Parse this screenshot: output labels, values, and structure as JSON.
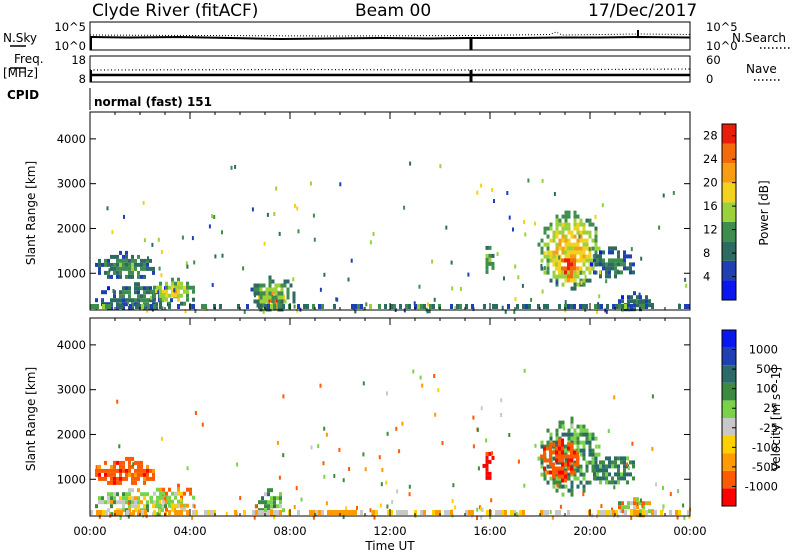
{
  "header": {
    "station": "Clyde River (fitACF)",
    "beam": "Beam 00",
    "date": "17/Dec/2017"
  },
  "noise_panel": {
    "left_label": "N.Sky",
    "left_ticks": [
      "10^5",
      "10^0"
    ],
    "right_label": "N.Search",
    "right_ticks": [
      "10^5",
      "10^0"
    ]
  },
  "freq_panel": {
    "left_label_1": "Freq.",
    "left_label_2": "[MHz]",
    "left_ticks": [
      "18",
      "8"
    ],
    "right_label": "Nave",
    "right_ticks": [
      "60",
      "0"
    ]
  },
  "cpid_panel": {
    "label": "CPID",
    "value": "normal (fast) 151"
  },
  "x_axis": {
    "label": "Time UT",
    "ticks": [
      "00:00",
      "04:00",
      "08:00",
      "12:00",
      "16:00",
      "20:00",
      "00:00"
    ]
  },
  "colors": {
    "power_scale": [
      "#0a16f0",
      "#1f3fb3",
      "#2d6b62",
      "#3f8c4f",
      "#9bd13a",
      "#f2d21a",
      "#f59e14",
      "#f26a0c",
      "#ec1c0b"
    ],
    "velocity_scale": [
      "#ff0000",
      "#ff5a00",
      "#ff9a00",
      "#ffd000",
      "#c8c8c8",
      "#7ad24a",
      "#3b8a3f",
      "#2c6a6a",
      "#1f3fb3",
      "#0a16f0"
    ]
  },
  "chart_data": [
    {
      "type": "heatmap",
      "title": "",
      "xlabel": "Time UT",
      "ylabel": "Slant Range [km]",
      "x_ticks": [
        "00:00",
        "04:00",
        "08:00",
        "12:00",
        "16:00",
        "20:00",
        "00:00"
      ],
      "y_ticks": [
        "1000",
        "2000",
        "3000",
        "4000"
      ],
      "ylim": [
        180,
        4600
      ],
      "colorbar_label": "Power [dB]",
      "colorbar_ticks": [
        "4",
        "8",
        "12",
        "16",
        "20",
        "24",
        "28"
      ],
      "colorbar_range": [
        0,
        30
      ],
      "regions": [
        {
          "t_start": 0.2,
          "t_end": 2.6,
          "r_min": 900,
          "r_max": 1500,
          "level": 12
        },
        {
          "t_start": 0.2,
          "t_end": 3.5,
          "r_min": 180,
          "r_max": 800,
          "level": 10
        },
        {
          "t_start": 2.4,
          "t_end": 4.2,
          "r_min": 300,
          "r_max": 900,
          "level": 18
        },
        {
          "t_start": 6.6,
          "t_end": 7.8,
          "r_min": 180,
          "r_max": 700,
          "level": 28
        },
        {
          "t_start": 6.3,
          "t_end": 8.2,
          "r_min": 180,
          "r_max": 950,
          "level": 14
        },
        {
          "t_start": 15.7,
          "t_end": 16.1,
          "r_min": 1000,
          "r_max": 1700,
          "level": 14
        },
        {
          "t_start": 17.9,
          "t_end": 20.4,
          "r_min": 700,
          "r_max": 2400,
          "level": 20
        },
        {
          "t_start": 18.6,
          "t_end": 19.6,
          "r_min": 800,
          "r_max": 1600,
          "level": 28
        },
        {
          "t_start": 20.0,
          "t_end": 21.8,
          "r_min": 900,
          "r_max": 1600,
          "level": 10
        },
        {
          "t_start": 21.0,
          "t_end": 22.5,
          "r_min": 180,
          "r_max": 600,
          "level": 8
        }
      ]
    },
    {
      "type": "heatmap",
      "title": "",
      "xlabel": "Time UT",
      "ylabel": "Slant Range [km]",
      "x_ticks": [
        "00:00",
        "04:00",
        "08:00",
        "12:00",
        "16:00",
        "20:00",
        "00:00"
      ],
      "y_ticks": [
        "1000",
        "2000",
        "3000",
        "4000"
      ],
      "ylim": [
        180,
        4600
      ],
      "colorbar_label": "Velocity [m s^-1]",
      "colorbar_ticks": [
        "1000",
        "500",
        "100",
        "25",
        "-25",
        "-100",
        "-500",
        "-1000"
      ],
      "colorbar_range": [
        -1000,
        1000
      ],
      "regions": [
        {
          "t_start": 0.2,
          "t_end": 2.6,
          "r_min": 900,
          "r_max": 1500,
          "velocity": -300
        },
        {
          "t_start": 0.2,
          "t_end": 3.5,
          "r_min": 180,
          "r_max": 800,
          "velocity": 150
        },
        {
          "t_start": 2.4,
          "t_end": 4.2,
          "r_min": 300,
          "r_max": 900,
          "velocity": 0
        },
        {
          "t_start": 6.6,
          "t_end": 7.8,
          "r_min": 180,
          "r_max": 800,
          "velocity": 300
        },
        {
          "t_start": 15.7,
          "t_end": 16.1,
          "r_min": 1000,
          "r_max": 1700,
          "velocity": -600
        },
        {
          "t_start": 17.9,
          "t_end": 20.4,
          "r_min": 700,
          "r_max": 2400,
          "velocity": 400
        },
        {
          "t_start": 18.0,
          "t_end": 19.5,
          "r_min": 1000,
          "r_max": 2000,
          "velocity": -400
        },
        {
          "t_start": 20.0,
          "t_end": 21.8,
          "r_min": 900,
          "r_max": 1600,
          "velocity": 500
        },
        {
          "t_start": 21.0,
          "t_end": 22.5,
          "r_min": 180,
          "r_max": 600,
          "velocity": 100
        }
      ]
    }
  ]
}
